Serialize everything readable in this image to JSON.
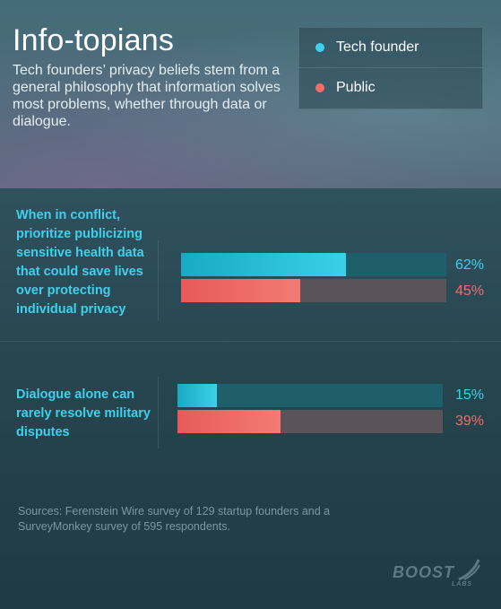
{
  "header": {
    "title": "Info-topians",
    "subtitle": "Tech founders’ privacy beliefs stem from a general philosophy that information solves most problems, whether through data or dialogue."
  },
  "legend": {
    "items": [
      {
        "label": "Tech founder",
        "color": "#3fd0ee"
      },
      {
        "label": "Public",
        "color": "#f36d6a"
      }
    ]
  },
  "chart_data": {
    "type": "bar",
    "orientation": "horizontal",
    "categories": [
      "When in conflict, prioritize publicizing sensitive health data that could save lives over protecting individual privacy",
      "Dialogue alone can rarely resolve military disputes"
    ],
    "series": [
      {
        "name": "Tech founder",
        "values": [
          62,
          15
        ],
        "labels": [
          "62%",
          "15%"
        ],
        "color": "#3fd0ee"
      },
      {
        "name": "Public",
        "values": [
          45,
          39
        ],
        "labels": [
          "45%",
          "39%"
        ],
        "color": "#f36d6a"
      }
    ],
    "unit": "%",
    "xlim": [
      0,
      100
    ],
    "grid": false
  },
  "sources": "Sources: Ferenstein Wire survey of 129 startup founders and a SurveyMonkey survey of 595 respondents.",
  "logo": {
    "text": "BOOST",
    "sub": "LABS"
  }
}
